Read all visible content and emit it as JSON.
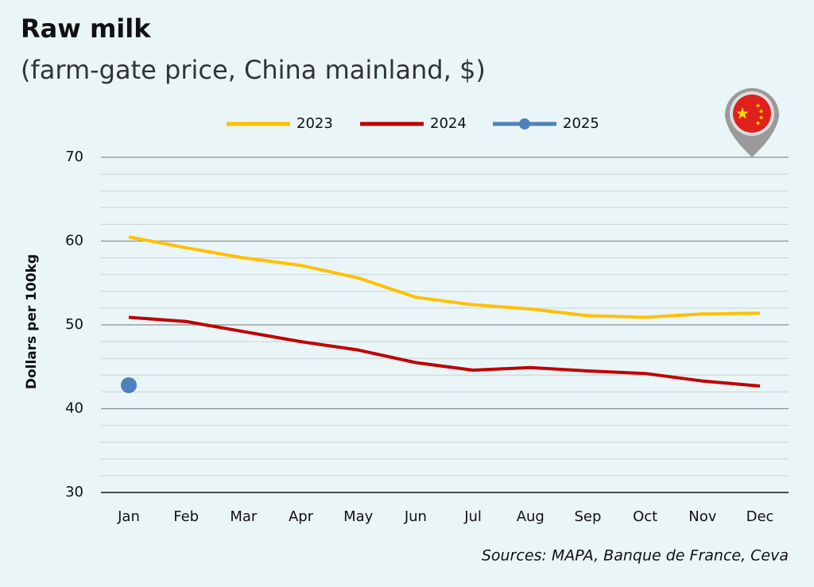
{
  "chart_data": {
    "type": "line",
    "title": "Raw milk",
    "subtitle": "(farm-gate price, China mainland, $)",
    "y_label": "Dollars per 100kg",
    "source": "Sources: MAPA, Banque de France, Ceva",
    "categories": [
      "Jan",
      "Feb",
      "Mar",
      "Apr",
      "May",
      "Jun",
      "Jul",
      "Aug",
      "Sep",
      "Oct",
      "Nov",
      "Dec"
    ],
    "series": [
      {
        "name": "2023",
        "color": "#ffc000",
        "values": [
          60.5,
          59.2,
          58.0,
          57.1,
          55.6,
          53.3,
          52.4,
          51.9,
          51.1,
          50.9,
          51.3,
          51.4
        ]
      },
      {
        "name": "2024",
        "color": "#c00000",
        "values": [
          50.9,
          50.4,
          49.2,
          48.0,
          47.0,
          45.5,
          44.6,
          44.9,
          44.5,
          44.2,
          43.3,
          42.7
        ]
      },
      {
        "name": "2025",
        "color": "#4f81bd",
        "marker": true,
        "values": [
          42.8,
          null,
          null,
          null,
          null,
          null,
          null,
          null,
          null,
          null,
          null,
          null
        ]
      }
    ],
    "ylim": [
      30,
      70
    ],
    "yticks": [
      30,
      40,
      50,
      60,
      70
    ],
    "minor_yticks": [
      32,
      34,
      36,
      38,
      42,
      44,
      46,
      48,
      52,
      54,
      56,
      58,
      62,
      64,
      66,
      68
    ],
    "grid": true,
    "legend": "top"
  }
}
